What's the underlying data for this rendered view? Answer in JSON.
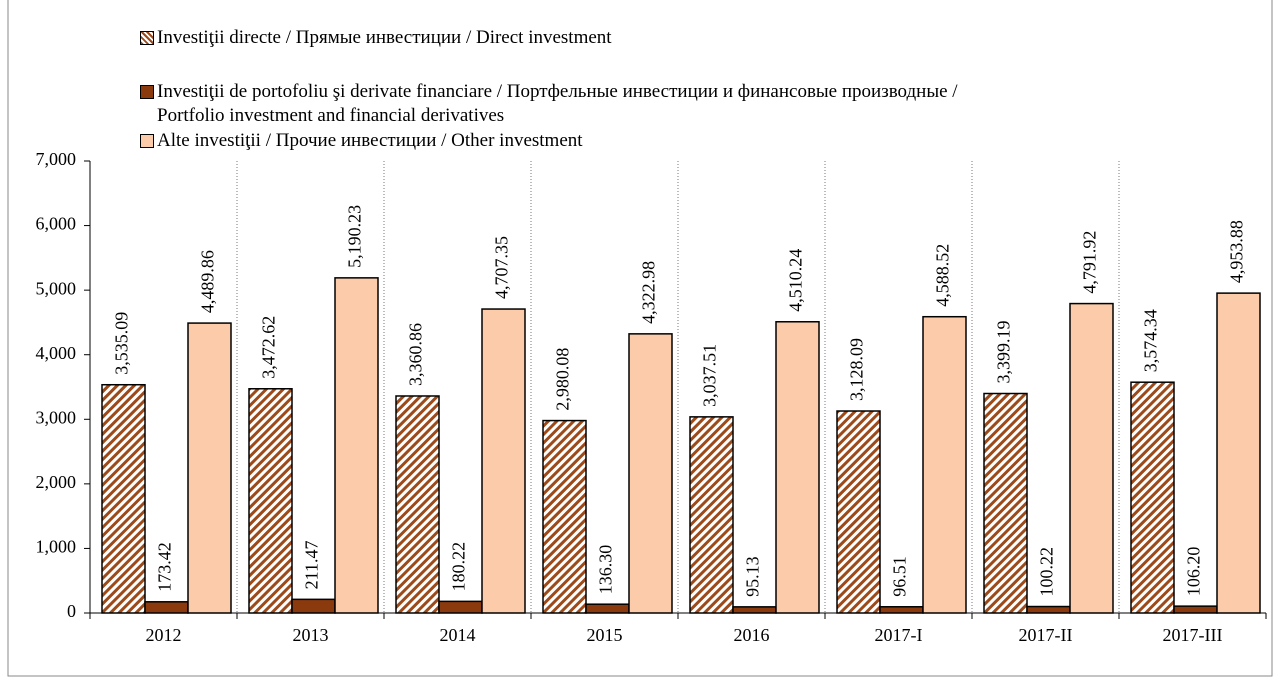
{
  "chart_data": {
    "type": "bar",
    "categories": [
      "2012",
      "2013",
      "2014",
      "2015",
      "2016",
      "2017-I",
      "2017-II",
      "2017-III"
    ],
    "series": [
      {
        "name": "Investiţii directe /  Прямые инвестиции / Direct investment",
        "color": "#9c4a1a",
        "pattern": "hatch",
        "values": [
          3535.09,
          3472.62,
          3360.86,
          2980.08,
          3037.51,
          3128.09,
          3399.19,
          3574.34
        ],
        "value_labels": [
          "3,535.09",
          "3,472.62",
          "3,360.86",
          "2,980.08",
          "3,037.51",
          "3,128.09",
          "3,399.19",
          "3,574.34"
        ]
      },
      {
        "name": "Investiţii de portofoliu şi derivate financiare / Портфельные инвестиции и финансовые производные /\nPortfolio investment and financial derivatives",
        "color": "#8b3a0e",
        "values": [
          173.42,
          211.47,
          180.22,
          136.3,
          95.13,
          96.51,
          100.22,
          106.2
        ],
        "value_labels": [
          "173.42",
          "211.47",
          "180.22",
          "136.30",
          "95.13",
          "96.51",
          "100.22",
          "106.20"
        ]
      },
      {
        "name": "Alte investiţii / Прочие инвестиции / Other investment",
        "color": "#fccbaa",
        "values": [
          4489.86,
          5190.23,
          4707.35,
          4322.98,
          4510.24,
          4588.52,
          4791.92,
          4953.88
        ],
        "value_labels": [
          "4,489.86",
          "5,190.23",
          "4,707.35",
          "4,322.98",
          "4,510.24",
          "4,588.52",
          "4,791.92",
          "4,953.88"
        ]
      }
    ],
    "ylim": [
      0,
      7000
    ],
    "yticks": [
      0,
      {
        "value": 1000,
        "label": "1,000"
      },
      {
        "value": 2000,
        "label": "2,000"
      },
      {
        "value": 3000,
        "label": "3,000"
      },
      {
        "value": 4000,
        "label": "4,000"
      },
      {
        "value": 5000,
        "label": "5,000"
      },
      {
        "value": 6000,
        "label": "6,000"
      },
      {
        "value": 7000,
        "label": "7,000"
      }
    ],
    "grid": false
  }
}
